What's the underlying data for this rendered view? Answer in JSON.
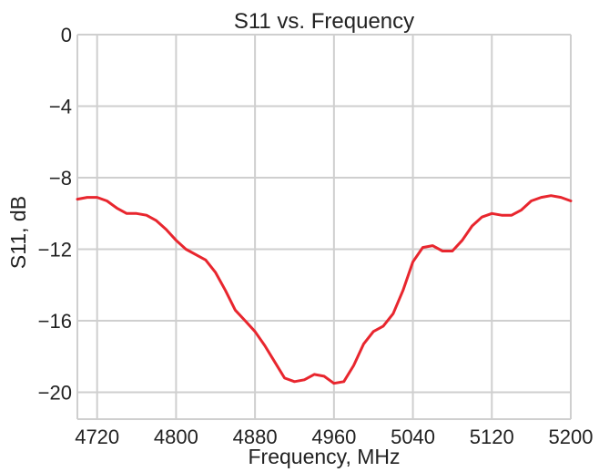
{
  "chart_data": {
    "type": "line",
    "title": "S11 vs. Frequency",
    "xlabel": "Frequency, MHz",
    "ylabel": "S11, dB",
    "xlim": [
      4700,
      5200
    ],
    "ylim": [
      -21.5,
      0
    ],
    "xticks": [
      4720,
      4800,
      4880,
      4960,
      5040,
      5120,
      5200
    ],
    "yticks": [
      0,
      -4,
      -8,
      -12,
      -16,
      -20
    ],
    "xtick_labels": [
      "4720",
      "4800",
      "4880",
      "4960",
      "5040",
      "5120",
      "5200"
    ],
    "ytick_labels": [
      "0",
      "−4",
      "−8",
      "−12",
      "−16",
      "−20"
    ],
    "grid": true,
    "series": [
      {
        "color": "#e8262e",
        "x": [
          4700,
          4710,
          4720,
          4730,
          4740,
          4750,
          4760,
          4770,
          4780,
          4790,
          4800,
          4810,
          4820,
          4830,
          4840,
          4850,
          4860,
          4870,
          4880,
          4890,
          4900,
          4910,
          4920,
          4930,
          4940,
          4950,
          4960,
          4970,
          4980,
          4990,
          5000,
          5010,
          5020,
          5030,
          5040,
          5050,
          5060,
          5070,
          5080,
          5090,
          5100,
          5110,
          5120,
          5130,
          5140,
          5150,
          5160,
          5170,
          5180,
          5190,
          5200
        ],
        "y": [
          -9.2,
          -9.1,
          -9.1,
          -9.3,
          -9.7,
          -10.0,
          -10.0,
          -10.1,
          -10.4,
          -10.9,
          -11.5,
          -12.0,
          -12.3,
          -12.6,
          -13.3,
          -14.3,
          -15.4,
          -16.0,
          -16.6,
          -17.4,
          -18.3,
          -19.2,
          -19.4,
          -19.3,
          -19.0,
          -19.1,
          -19.5,
          -19.4,
          -18.5,
          -17.3,
          -16.6,
          -16.3,
          -15.6,
          -14.3,
          -12.7,
          -11.9,
          -11.8,
          -12.1,
          -12.1,
          -11.5,
          -10.7,
          -10.2,
          -10.0,
          -10.1,
          -10.1,
          -9.8,
          -9.3,
          -9.1,
          -9.0,
          -9.1,
          -9.3
        ]
      }
    ]
  }
}
